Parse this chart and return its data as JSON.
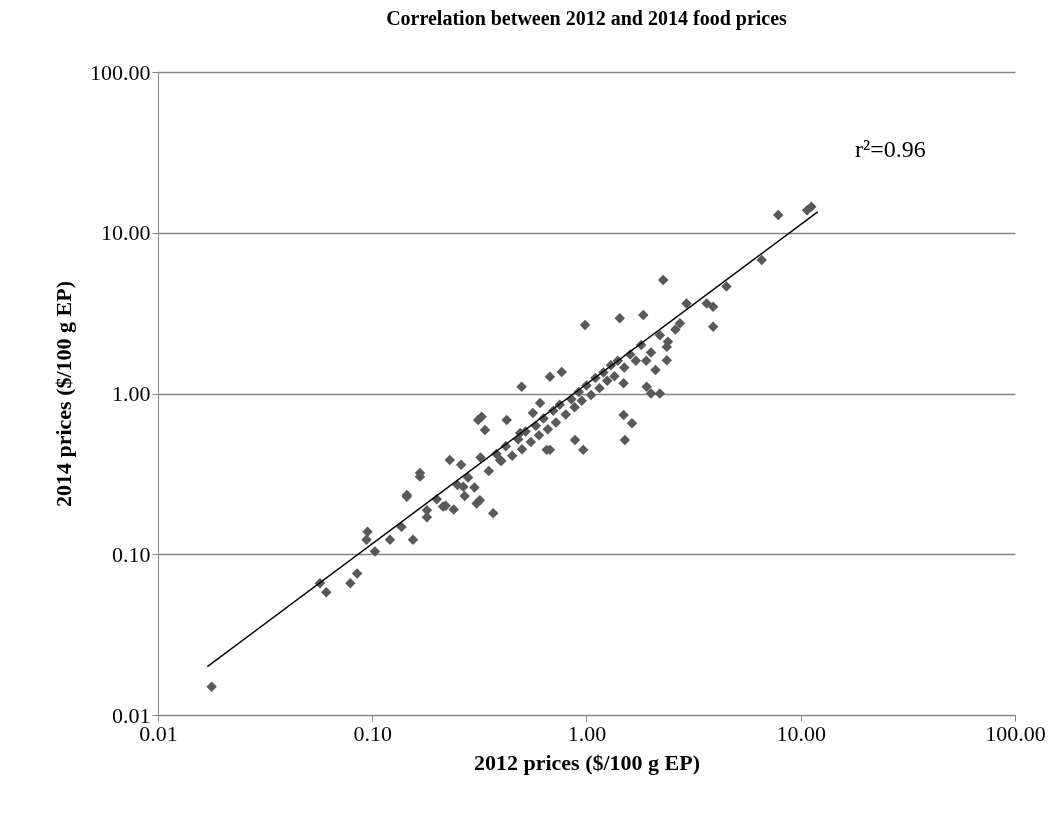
{
  "chart_data": {
    "type": "scatter",
    "title": "Correlation between 2012 and 2014 food prices",
    "xlabel": "2012 prices ($/100 g EP)",
    "ylabel": "2014 prices ($/100 g EP)",
    "log": "xy",
    "grid": "y",
    "marker": "diamond",
    "xlim": [
      0.01,
      100
    ],
    "ylim": [
      0.01,
      100
    ],
    "xticks": [
      0.01,
      {
        "value": 0.1,
        "label": "0.10"
      },
      {
        "value": 1,
        "label": "1.00"
      },
      {
        "value": 10,
        "label": "10.00"
      },
      {
        "value": 100,
        "label": "100.00"
      }
    ],
    "yticks": [
      0.01,
      {
        "value": 0.1,
        "label": "0.10"
      },
      {
        "value": 1,
        "label": "1.00"
      },
      {
        "value": 10,
        "label": "10.00"
      },
      {
        "value": 100,
        "label": "100.00"
      }
    ],
    "annotations": [
      "r²=0.96"
    ],
    "series": [
      {
        "color": "#595959",
        "x": [
          0.0178,
          0.057,
          0.061,
          0.079,
          0.085,
          0.095,
          0.094,
          0.103,
          0.121,
          0.137,
          0.145,
          0.167,
          0.155,
          0.18,
          0.23,
          0.214,
          0.266,
          0.307,
          0.312,
          0.498,
          0.324,
          0.336,
          0.167,
          0.145,
          0.367,
          0.652,
          0.607,
          0.318,
          0.424,
          0.395,
          0.49,
          0.562,
          2.28,
          0.984,
          1.43,
          1.84,
          3.9,
          3.9,
          3.64,
          0.766,
          0.675,
          1.49,
          1.91,
          1.49,
          1.63,
          1.51,
          0.884,
          0.966,
          0.675,
          2.73,
          2.93,
          2.37,
          2.37,
          4.5,
          7.85,
          11.2,
          10.7,
          6.57,
          0.35,
          0.38,
          0.4,
          0.42,
          0.45,
          0.48,
          0.5,
          0.52,
          0.55,
          0.58,
          0.6,
          0.63,
          0.66,
          0.7,
          0.72,
          0.75,
          0.8,
          0.85,
          0.88,
          0.92,
          0.95,
          1.0,
          1.05,
          1.1,
          1.15,
          1.2,
          1.25,
          1.3,
          1.35,
          1.4,
          1.5,
          1.6,
          1.7,
          1.8,
          2.0,
          2.2,
          2.4,
          2.6,
          0.28,
          0.3,
          0.25,
          0.22,
          0.2,
          0.18,
          0.26,
          0.32,
          0.24,
          0.27,
          2.0,
          2.2,
          2.1,
          1.9
        ],
        "values": [
          0.015,
          0.066,
          0.058,
          0.066,
          0.076,
          0.138,
          0.123,
          0.104,
          0.123,
          0.148,
          0.228,
          0.304,
          0.123,
          0.188,
          0.386,
          0.198,
          0.263,
          0.207,
          0.684,
          1.1,
          0.716,
          0.593,
          0.32,
          0.234,
          0.18,
          0.446,
          0.872,
          0.217,
          0.684,
          0.386,
          0.568,
          0.757,
          5.08,
          2.67,
          2.94,
          3.08,
          2.6,
          3.47,
          3.63,
          1.36,
          1.27,
          1.16,
          1.1,
          0.735,
          0.653,
          0.514,
          0.514,
          0.446,
          0.446,
          2.74,
          3.63,
          1.95,
          1.61,
          4.63,
          12.9,
          14.5,
          13.8,
          6.77,
          0.33,
          0.42,
          0.38,
          0.47,
          0.41,
          0.52,
          0.45,
          0.58,
          0.5,
          0.63,
          0.55,
          0.7,
          0.6,
          0.78,
          0.66,
          0.85,
          0.74,
          0.92,
          0.82,
          1.02,
          0.9,
          1.12,
          0.98,
          1.25,
          1.08,
          1.35,
          1.2,
          1.5,
          1.28,
          1.6,
          1.45,
          1.75,
          1.6,
          2.0,
          1.8,
          2.3,
          2.1,
          2.5,
          0.3,
          0.26,
          0.27,
          0.2,
          0.22,
          0.17,
          0.36,
          0.4,
          0.19,
          0.23,
          1.0,
          1.0,
          1.4,
          1.6
        ]
      },
      {
        "type": "line",
        "color": "#000000",
        "marker": "none",
        "x": [
          0.017,
          12
        ],
        "values": [
          0.02,
          13.5
        ]
      }
    ]
  }
}
